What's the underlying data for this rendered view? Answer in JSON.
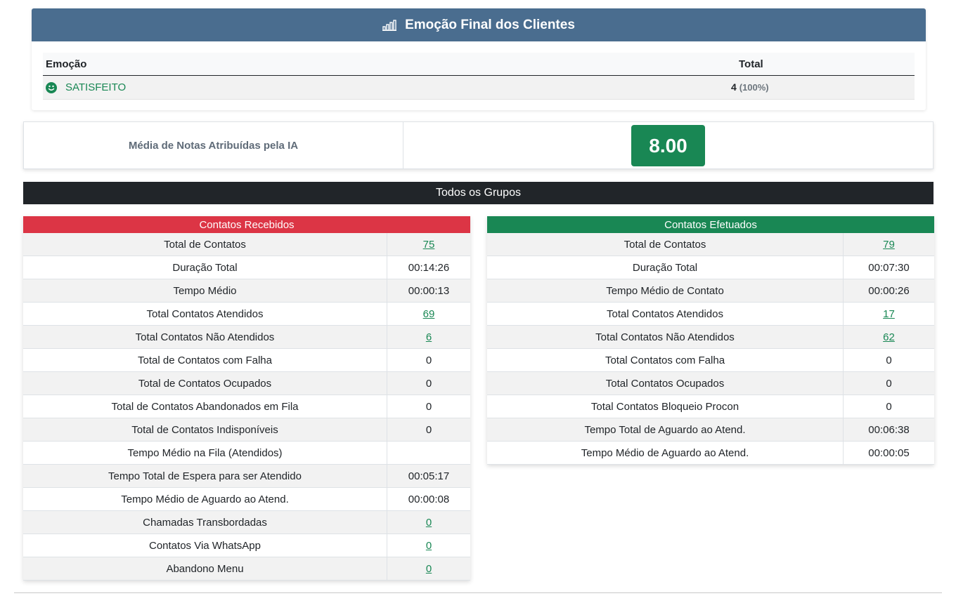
{
  "emotion_card": {
    "title": "Emoção Final dos Clientes",
    "icon": "bar-chart-icon",
    "headers": {
      "emotion": "Emoção",
      "total": "Total"
    },
    "rows": [
      {
        "icon": "smile-icon",
        "label": "SATISFEITO",
        "total": "4",
        "percent": "(100%)"
      }
    ]
  },
  "average": {
    "label": "Média de Notas Atribuídas pela IA",
    "value": "8.00"
  },
  "groups_bar": {
    "label": "Todos os Grupos"
  },
  "received": {
    "title": "Contatos Recebidos",
    "rows": [
      {
        "label": "Total de Contatos",
        "value": "75",
        "link": true
      },
      {
        "label": "Duração Total",
        "value": "00:14:26",
        "link": false
      },
      {
        "label": "Tempo Médio",
        "value": "00:00:13",
        "link": false
      },
      {
        "label": "Total Contatos Atendidos",
        "value": "69",
        "link": true
      },
      {
        "label": "Total Contatos Não Atendidos",
        "value": "6",
        "link": true
      },
      {
        "label": "Total de Contatos com Falha",
        "value": "0",
        "link": false
      },
      {
        "label": "Total de Contatos Ocupados",
        "value": "0",
        "link": false
      },
      {
        "label": "Total de Contatos Abandonados em Fila",
        "value": "0",
        "link": false
      },
      {
        "label": "Total de Contatos Indisponíveis",
        "value": "0",
        "link": false
      },
      {
        "label": "Tempo Médio na Fila (Atendidos)",
        "value": "",
        "link": false
      },
      {
        "label": "Tempo Total de Espera para ser Atendido",
        "value": "00:05:17",
        "link": false
      },
      {
        "label": "Tempo Médio de Aguardo ao Atend.",
        "value": "00:00:08",
        "link": false
      },
      {
        "label": "Chamadas Transbordadas",
        "value": "0",
        "link": true
      },
      {
        "label": "Contatos Via WhatsApp",
        "value": "0",
        "link": true
      },
      {
        "label": "Abandono Menu",
        "value": "0",
        "link": true
      }
    ]
  },
  "made": {
    "title": "Contatos Efetuados",
    "rows": [
      {
        "label": "Total de Contatos",
        "value": "79",
        "link": true
      },
      {
        "label": "Duração Total",
        "value": "00:07:30",
        "link": false
      },
      {
        "label": "Tempo Médio de Contato",
        "value": "00:00:26",
        "link": false
      },
      {
        "label": "Total Contatos Atendidos",
        "value": "17",
        "link": true
      },
      {
        "label": "Total Contatos Não Atendidos",
        "value": "62",
        "link": true
      },
      {
        "label": "Total Contatos com Falha",
        "value": "0",
        "link": false
      },
      {
        "label": "Total Contatos Ocupados",
        "value": "0",
        "link": false
      },
      {
        "label": "Total Contatos Bloqueio Procon",
        "value": "0",
        "link": false
      },
      {
        "label": "Tempo Total de Aguardo ao Atend.",
        "value": "00:06:38",
        "link": false
      },
      {
        "label": "Tempo Médio de Aguardo ao Atend.",
        "value": "00:00:05",
        "link": false
      }
    ]
  },
  "colors": {
    "header_blue": "#4a6d8f",
    "success_green": "#198754",
    "danger_red": "#dc3545",
    "dark_bar": "#212529"
  }
}
